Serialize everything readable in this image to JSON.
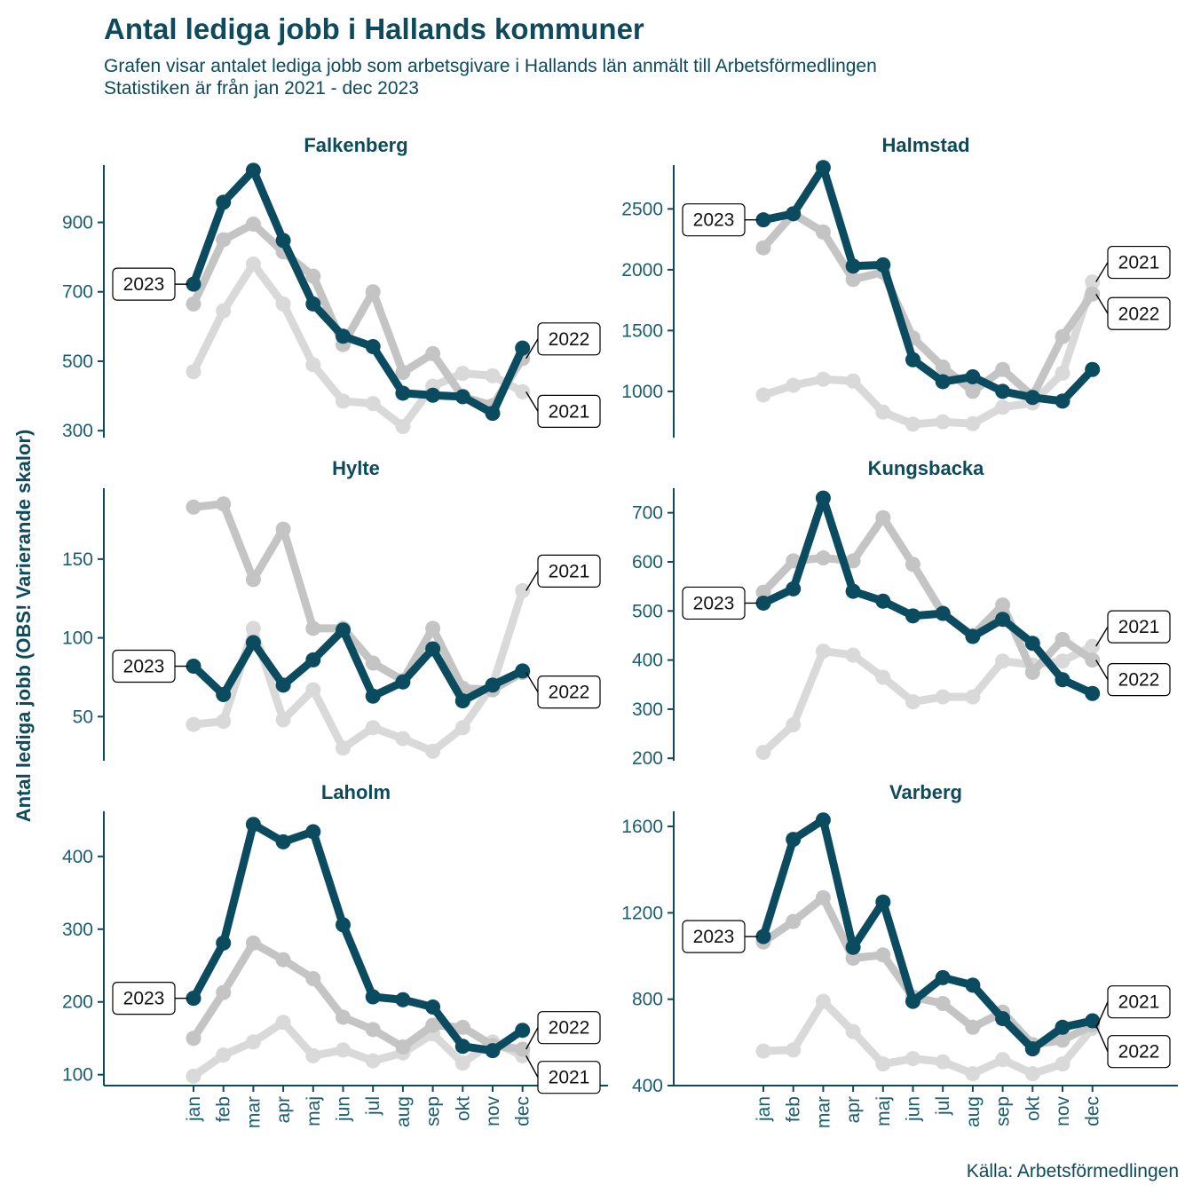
{
  "title": "Antal lediga jobb i Hallands kommuner",
  "subtitle_line1": "Grafen visar antalet lediga jobb som arbetsgivare i Hallands län anmält till Arbetsförmedlingen",
  "subtitle_line2": "Statistiken är från jan 2021 - dec 2023",
  "ylabel": "Antal lediga jobb (OBS! Varierande skalor)",
  "caption": "Källa: Arbetsförmedlingen",
  "colors": {
    "2021": "#d9d9d9",
    "2022": "#c4c4c4",
    "2023": "#0b4b5f",
    "axis": "#0d4a5c"
  },
  "chart_data": {
    "type": "line",
    "x": [
      "jan",
      "feb",
      "mar",
      "apr",
      "maj",
      "jun",
      "jul",
      "aug",
      "sep",
      "okt",
      "nov",
      "dec"
    ],
    "series_names": [
      "2021",
      "2022",
      "2023"
    ],
    "facets": [
      {
        "name": "Falkenberg",
        "ylim": [
          280,
          1065
        ],
        "yticks": [
          300,
          500,
          700,
          900
        ],
        "series": [
          {
            "name": "2021",
            "values": [
              470,
              645,
              780,
              665,
              490,
              385,
              378,
              312,
              428,
              465,
              458,
              412
            ]
          },
          {
            "name": "2022",
            "values": [
              665,
              850,
              895,
              815,
              745,
              548,
              700,
              468,
              522,
              398,
              372,
              508
            ]
          },
          {
            "name": "2023",
            "values": [
              722,
              958,
              1050,
              848,
              665,
              572,
              542,
              408,
              402,
              398,
              350,
              538
            ]
          }
        ],
        "labels": [
          "2023",
          "2022",
          "2021"
        ]
      },
      {
        "name": "Halmstad",
        "ylim": [
          620,
          2860
        ],
        "yticks": [
          1000,
          1500,
          2000,
          2500
        ],
        "series": [
          {
            "name": "2021",
            "values": [
              970,
              1050,
              1100,
              1085,
              830,
              730,
              750,
              735,
              870,
              905,
              1150,
              1900
            ]
          },
          {
            "name": "2022",
            "values": [
              2180,
              2460,
              2310,
              1920,
              1980,
              1440,
              1200,
              1000,
              1180,
              960,
              1450,
              1800
            ]
          },
          {
            "name": "2023",
            "values": [
              2410,
              2460,
              2840,
              2030,
              2040,
              1260,
              1080,
              1120,
              1000,
              950,
              920,
              1180
            ]
          }
        ],
        "labels": [
          "2023",
          "2021",
          "2022"
        ]
      },
      {
        "name": "Hylte",
        "ylim": [
          22,
          195
        ],
        "yticks": [
          50,
          100,
          150
        ],
        "series": [
          {
            "name": "2021",
            "values": [
              45,
              47,
              106,
              48,
              67,
              30,
              43,
              36,
              28,
              43,
              70,
              130
            ]
          },
          {
            "name": "2022",
            "values": [
              183,
              185,
              137,
              169,
              106,
              106,
              84,
              73,
              106,
              68,
              67,
              78
            ]
          },
          {
            "name": "2023",
            "values": [
              82,
              64,
              97,
              70,
              86,
              105,
              63,
              72,
              93,
              60,
              70,
              79
            ]
          }
        ],
        "labels": [
          "2023",
          "2021",
          "2022"
        ]
      },
      {
        "name": "Kungsbacka",
        "ylim": [
          195,
          750
        ],
        "yticks": [
          200,
          300,
          400,
          500,
          600,
          700
        ],
        "series": [
          {
            "name": "2021",
            "values": [
              212,
              268,
              418,
              410,
              365,
              315,
              325,
              325,
              398,
              390,
              398,
              428
            ]
          },
          {
            "name": "2022",
            "values": [
              538,
              602,
              608,
              602,
              690,
              595,
              495,
              450,
              512,
              375,
              442,
              400
            ]
          },
          {
            "name": "2023",
            "values": [
              516,
              545,
              730,
              540,
              520,
              490,
              495,
              448,
              483,
              434,
              360,
              332
            ]
          }
        ],
        "labels": [
          "2023",
          "2021",
          "2022"
        ]
      },
      {
        "name": "Laholm",
        "ylim": [
          85,
          462
        ],
        "yticks": [
          100,
          200,
          300,
          400
        ],
        "series": [
          {
            "name": "2021",
            "values": [
              98,
              127,
              145,
              172,
              126,
              134,
              119,
              130,
              156,
              116,
              145,
              126
            ]
          },
          {
            "name": "2022",
            "values": [
              150,
              213,
              281,
              258,
              232,
              179,
              162,
              138,
              168,
              165,
              140,
              135
            ]
          },
          {
            "name": "2023",
            "values": [
              205,
              281,
              444,
              420,
              434,
              306,
              207,
              203,
              193,
              139,
              133,
              161
            ]
          }
        ],
        "labels": [
          "2023",
          "2022",
          "2021"
        ]
      },
      {
        "name": "Varberg",
        "ylim": [
          400,
          1670
        ],
        "yticks": [
          400,
          800,
          1200,
          1600
        ],
        "series": [
          {
            "name": "2021",
            "values": [
              560,
              565,
              790,
              650,
              500,
              525,
              510,
              455,
              520,
              455,
              500,
              665
            ]
          },
          {
            "name": "2022",
            "values": [
              1065,
              1160,
              1270,
              990,
              1005,
              810,
              780,
              670,
              740,
              590,
              610,
              680
            ]
          },
          {
            "name": "2023",
            "values": [
              1090,
              1540,
              1630,
              1040,
              1250,
              790,
              900,
              865,
              710,
              570,
              670,
              700
            ]
          }
        ],
        "labels": [
          "2023",
          "2021",
          "2022"
        ]
      }
    ]
  }
}
